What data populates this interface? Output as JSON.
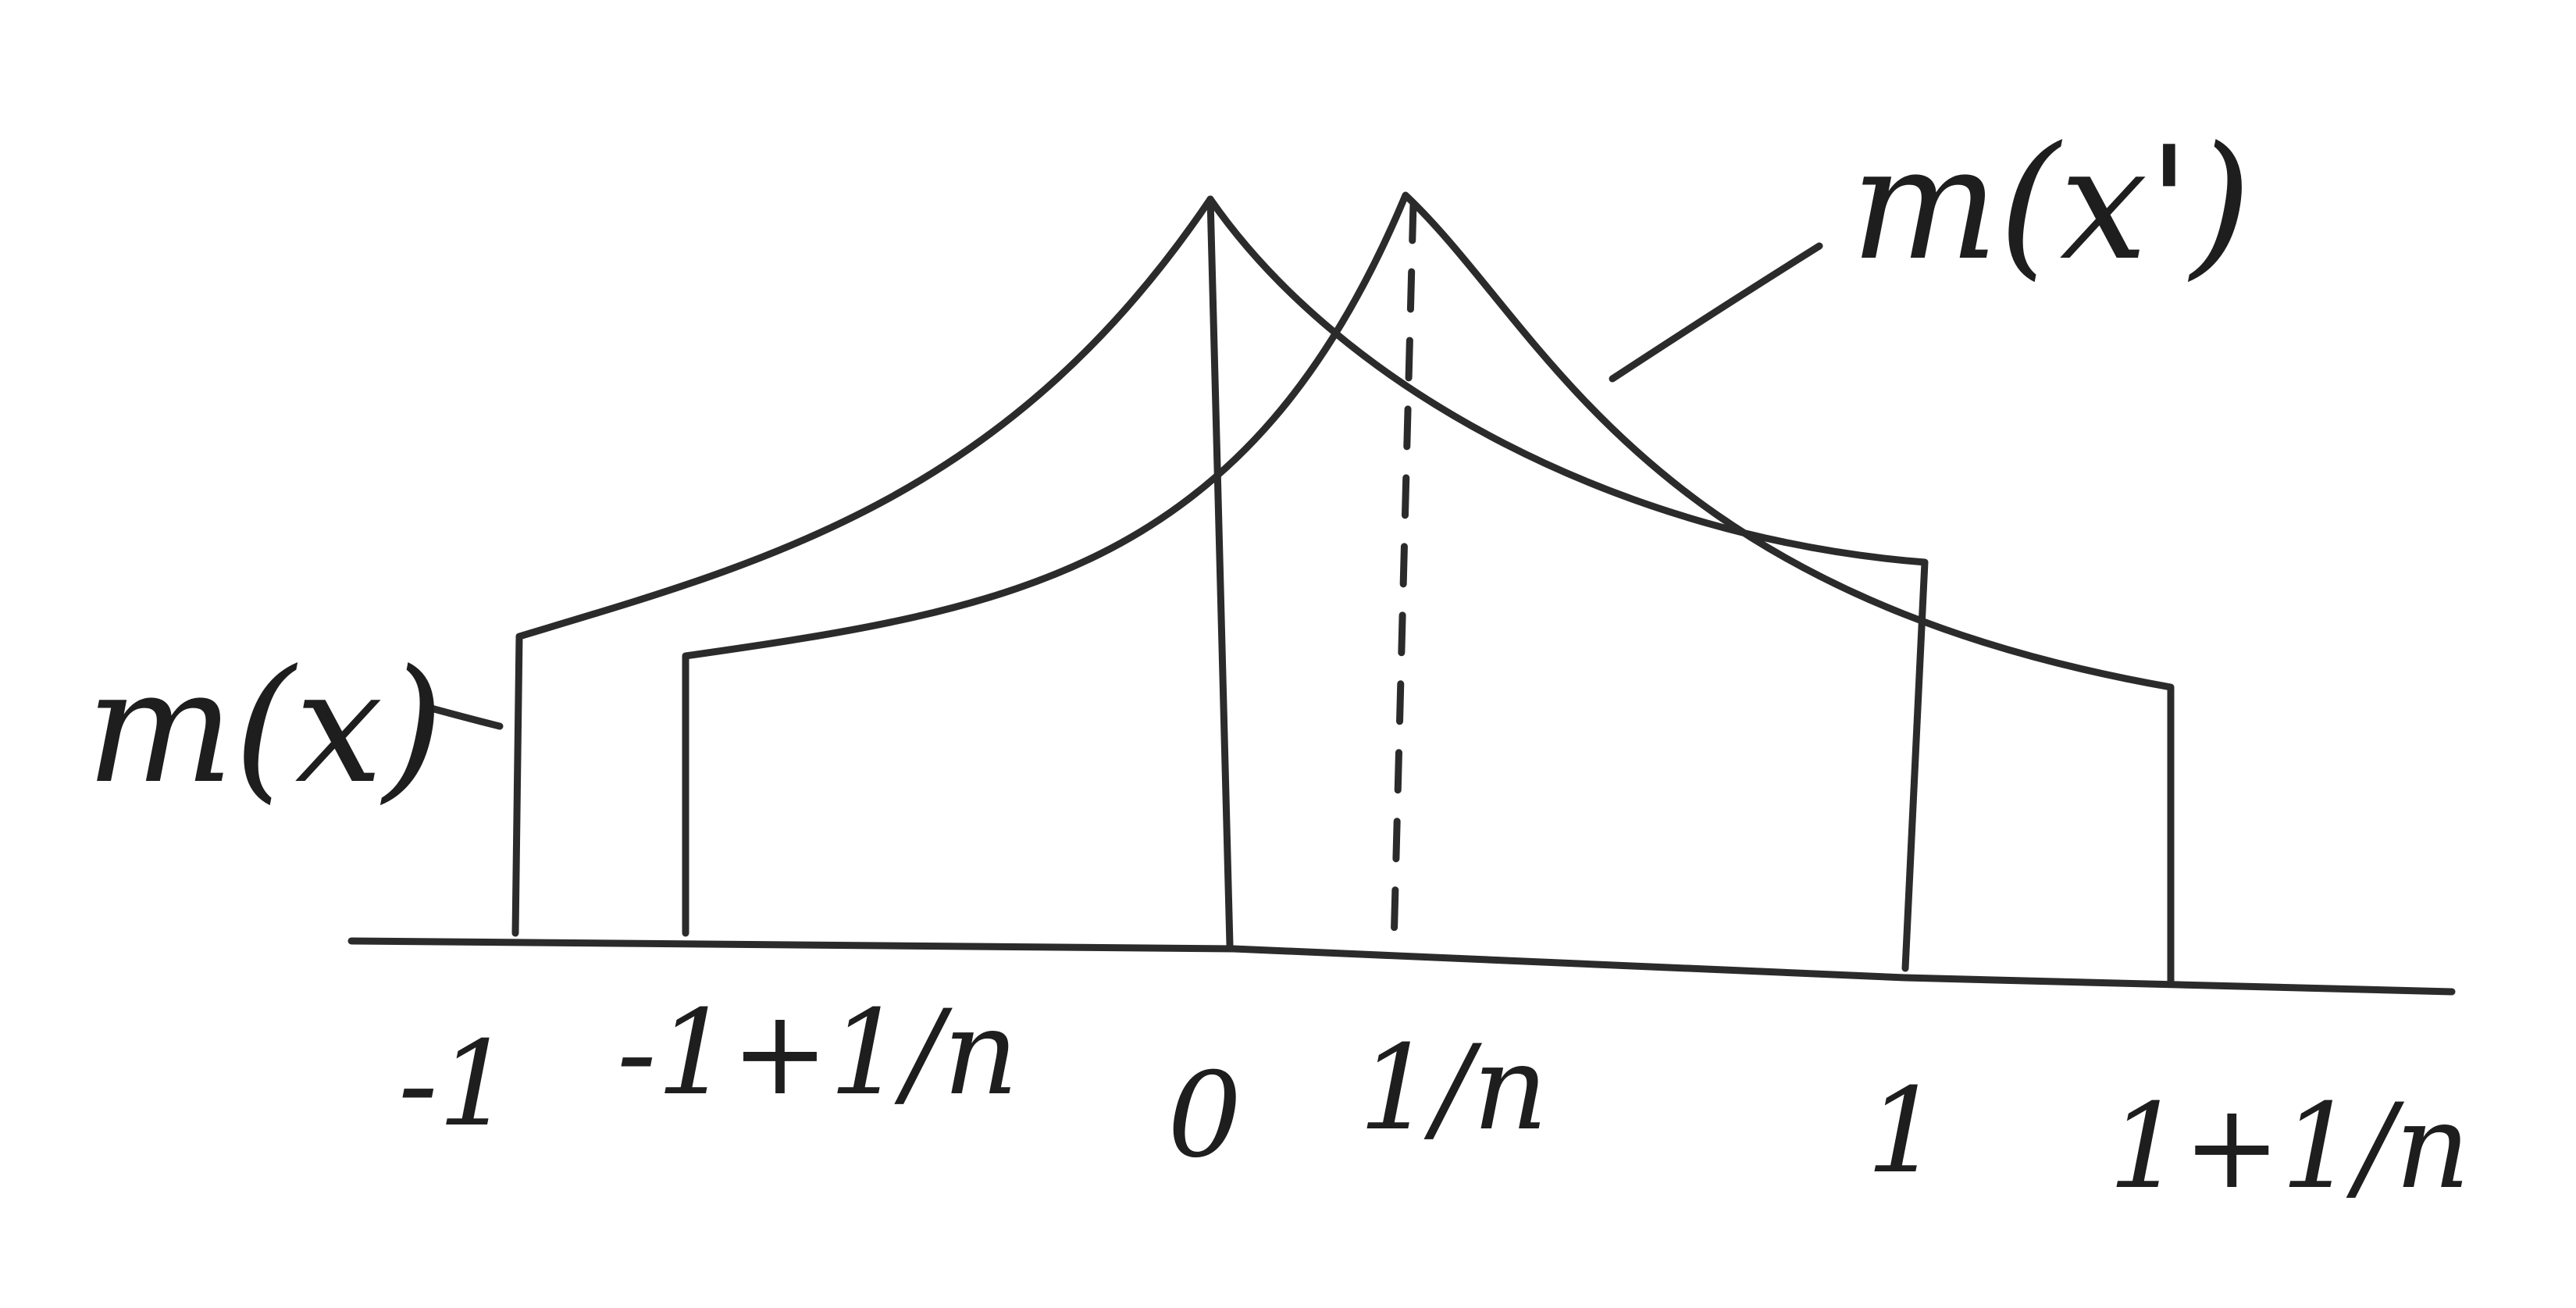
{
  "curve_labels": {
    "m_x": "m(x)",
    "m_x_prime": "m(x')"
  },
  "axis_ticks": {
    "neg_one": "-1",
    "neg_one_plus_1n": "-1+1/n",
    "zero": "0",
    "one_over_n": "1/n",
    "one": "1",
    "one_plus_1n": "1+1/n"
  },
  "colors": {
    "ink": "#2b2b2b",
    "paper": "#ffffff"
  }
}
